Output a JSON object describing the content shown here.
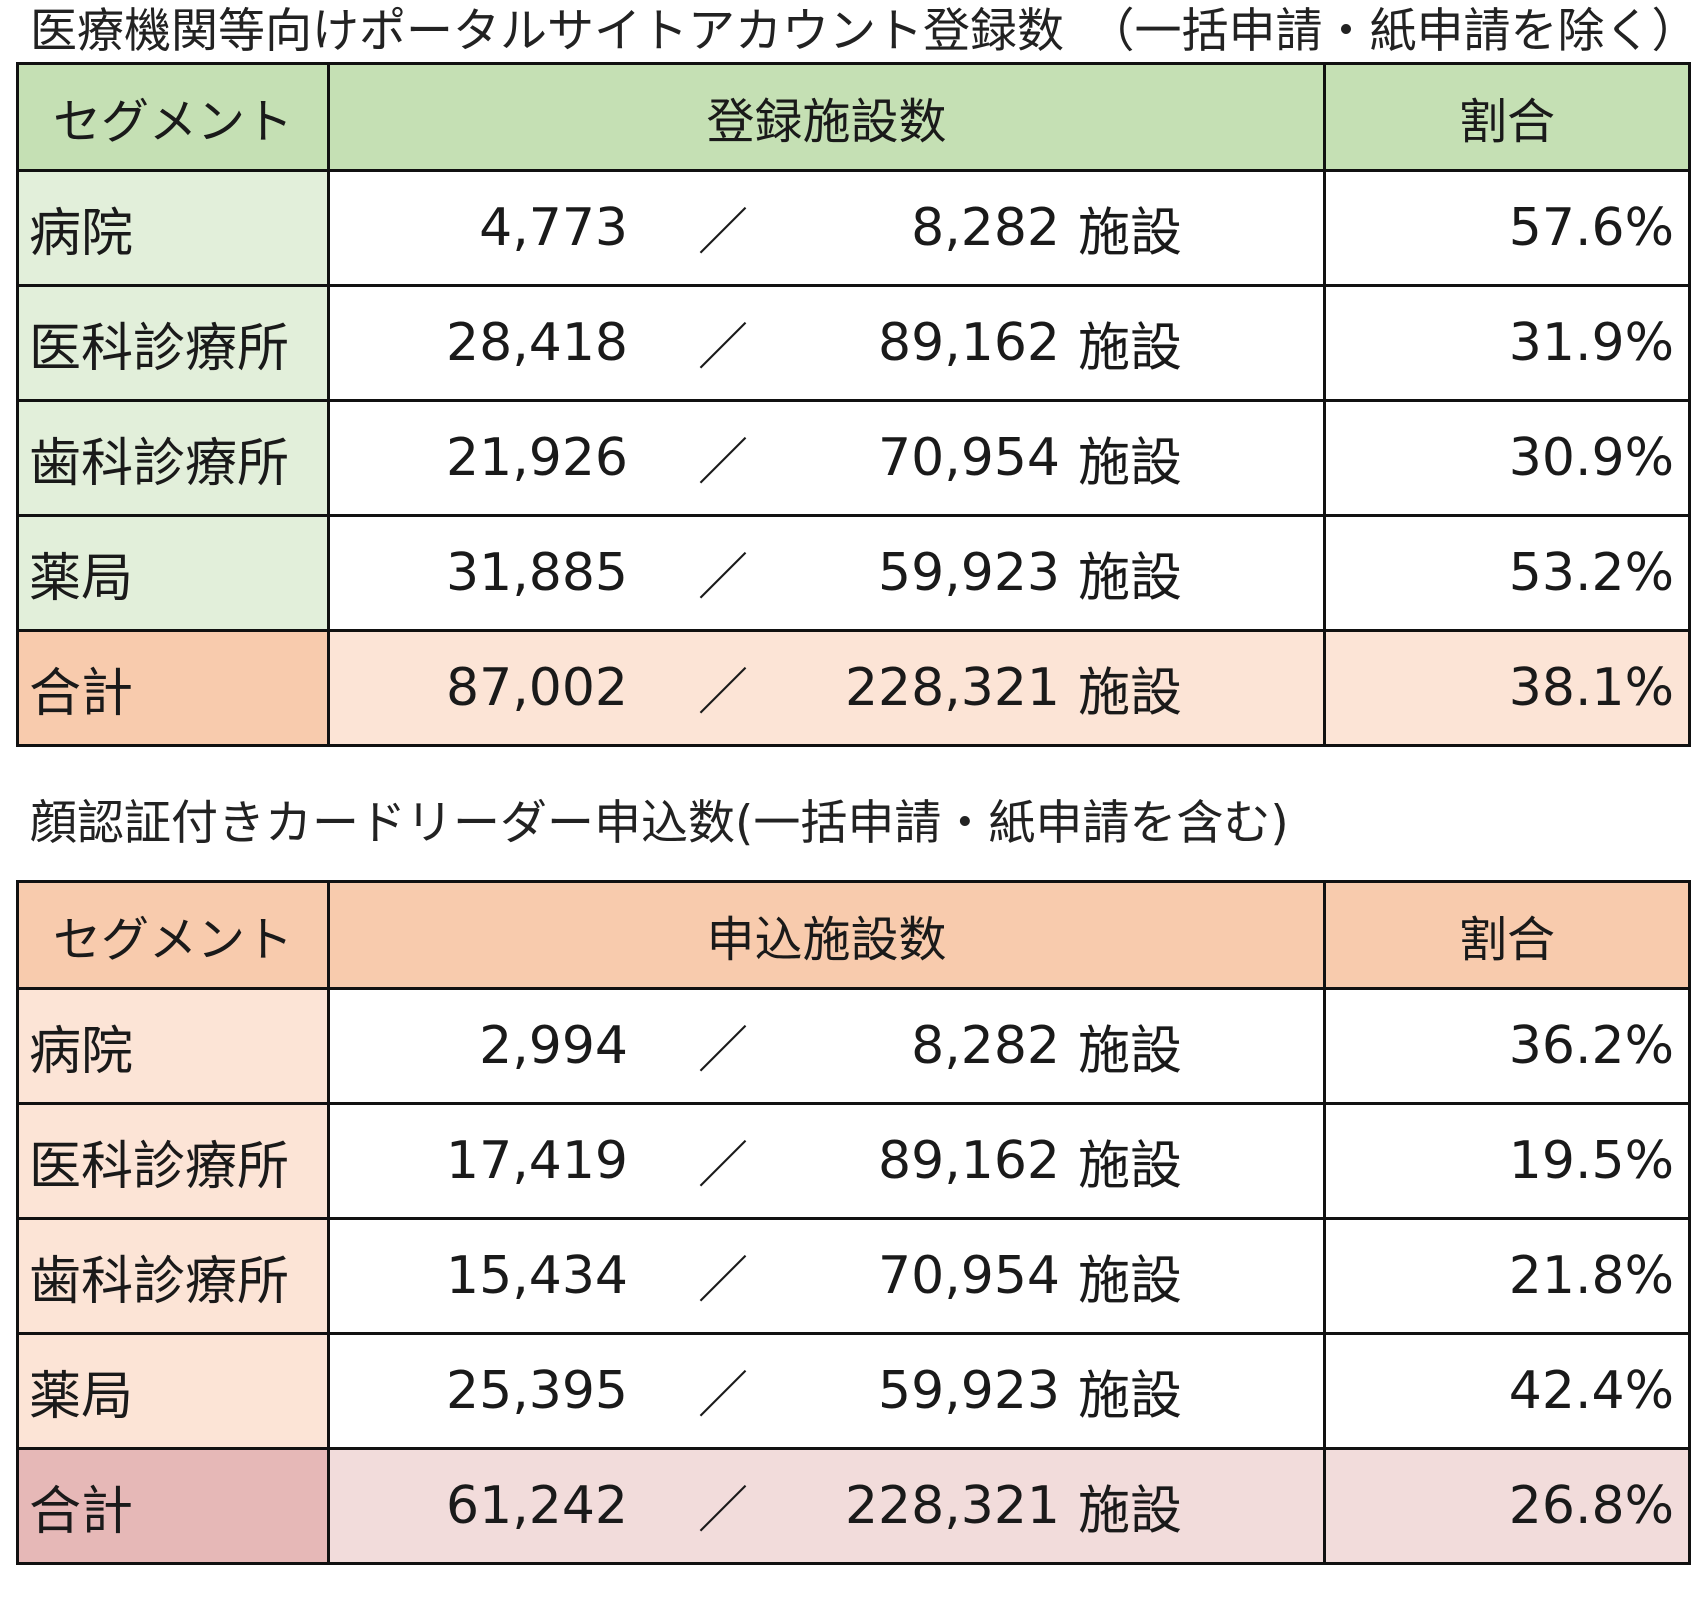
{
  "colors": {
    "table1_header": "#c5e0b4",
    "table1_segment": "#e2efda",
    "table1_total_segment": "#f8cbad",
    "table1_total_row": "#fce4d6",
    "table2_header": "#f8cbad",
    "table2_segment": "#fce4d6",
    "table2_total_segment": "#e6b8b7",
    "table2_total_row": "#f2dcdb",
    "body_cell": "#ffffff"
  },
  "tables": [
    {
      "title": "医療機関等向けポータルサイトアカウント登録数　（一括申請・紙申請を除く）",
      "headers": {
        "segment": "セグメント",
        "count": "登録施設数",
        "ratio": "割合"
      },
      "rows": [
        {
          "segment": "病院",
          "numerator": "4,773",
          "slash": "／",
          "denominator": "8,282",
          "unit": "施設",
          "ratio": "57.6%"
        },
        {
          "segment": "医科診療所",
          "numerator": "28,418",
          "slash": "／",
          "denominator": "89,162",
          "unit": "施設",
          "ratio": "31.9%"
        },
        {
          "segment": "歯科診療所",
          "numerator": "21,926",
          "slash": "／",
          "denominator": "70,954",
          "unit": "施設",
          "ratio": "30.9%"
        },
        {
          "segment": "薬局",
          "numerator": "31,885",
          "slash": "／",
          "denominator": "59,923",
          "unit": "施設",
          "ratio": "53.2%"
        }
      ],
      "total": {
        "segment": "合計",
        "numerator": "87,002",
        "slash": "／",
        "denominator": "228,321",
        "unit": "施設",
        "ratio": "38.1%"
      }
    },
    {
      "title": "顔認証付きカードリーダー申込数(一括申請・紙申請を含む)",
      "headers": {
        "segment": "セグメント",
        "count": "申込施設数",
        "ratio": "割合"
      },
      "rows": [
        {
          "segment": "病院",
          "numerator": "2,994",
          "slash": "／",
          "denominator": "8,282",
          "unit": "施設",
          "ratio": "36.2%"
        },
        {
          "segment": "医科診療所",
          "numerator": "17,419",
          "slash": "／",
          "denominator": "89,162",
          "unit": "施設",
          "ratio": "19.5%"
        },
        {
          "segment": "歯科診療所",
          "numerator": "15,434",
          "slash": "／",
          "denominator": "70,954",
          "unit": "施設",
          "ratio": "21.8%"
        },
        {
          "segment": "薬局",
          "numerator": "25,395",
          "slash": "／",
          "denominator": "59,923",
          "unit": "施設",
          "ratio": "42.4%"
        }
      ],
      "total": {
        "segment": "合計",
        "numerator": "61,242",
        "slash": "／",
        "denominator": "228,321",
        "unit": "施設",
        "ratio": "26.8%"
      }
    }
  ]
}
